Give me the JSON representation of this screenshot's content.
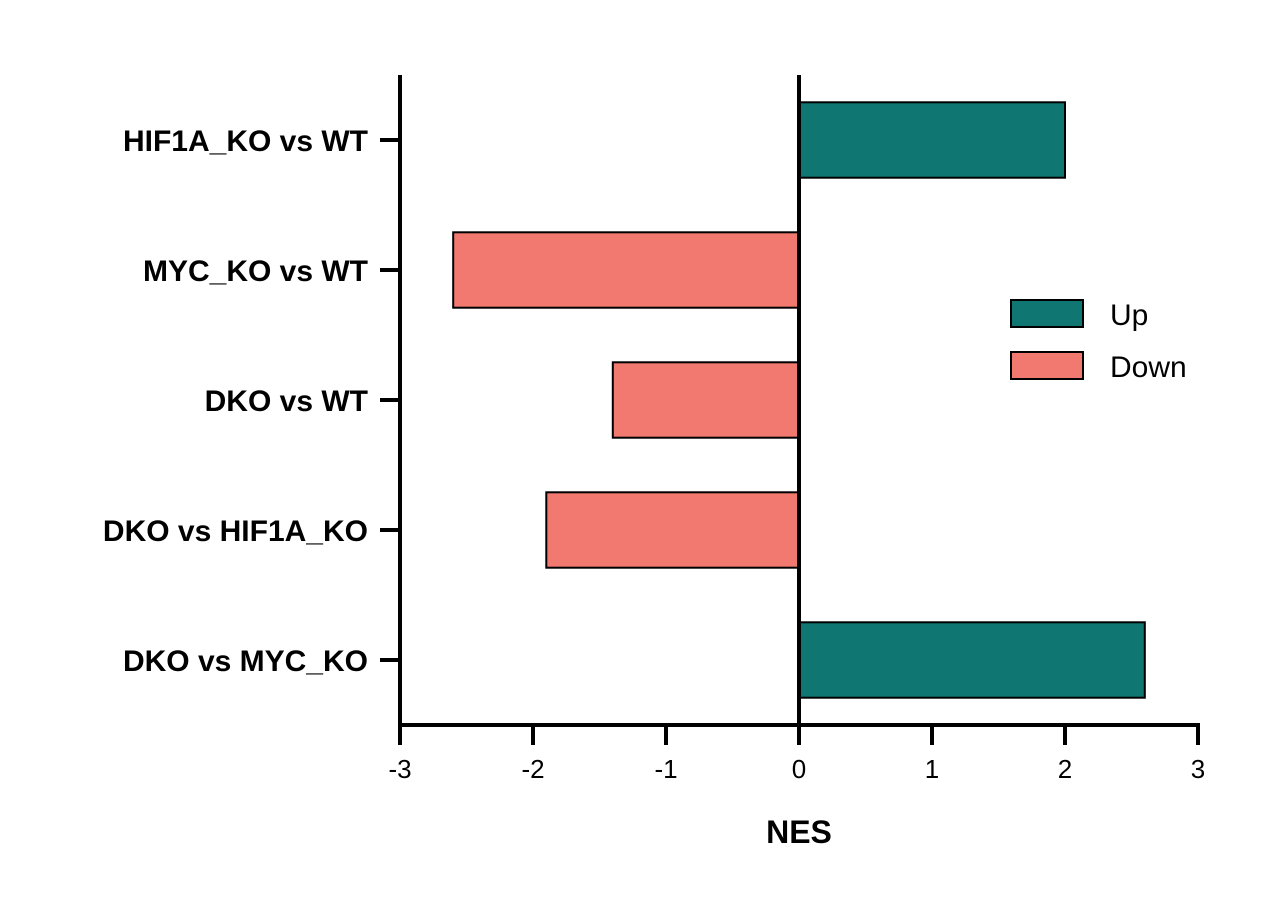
{
  "chart_data": {
    "type": "bar",
    "orientation": "horizontal",
    "categories": [
      "HIF1A_KO vs WT",
      "MYC_KO vs WT",
      "DKO vs WT",
      "DKO vs HIF1A_KO",
      "DKO vs MYC_KO"
    ],
    "values": [
      2.0,
      -2.6,
      -1.4,
      -1.9,
      2.6
    ],
    "direction": [
      "Up",
      "Down",
      "Down",
      "Down",
      "Up"
    ],
    "xlabel": "NES",
    "ylabel": "",
    "xlim": [
      -3,
      3
    ],
    "xticks": [
      "-3",
      "-2",
      "-1",
      "0",
      "1",
      "2",
      "3"
    ],
    "grid": false,
    "legend": {
      "position": "right",
      "entries": [
        {
          "label": "Up",
          "color": "#107672"
        },
        {
          "label": "Down",
          "color": "#F27970"
        }
      ]
    },
    "colors": {
      "Up": "#107672",
      "Down": "#F27970",
      "outline": "#000000"
    }
  }
}
